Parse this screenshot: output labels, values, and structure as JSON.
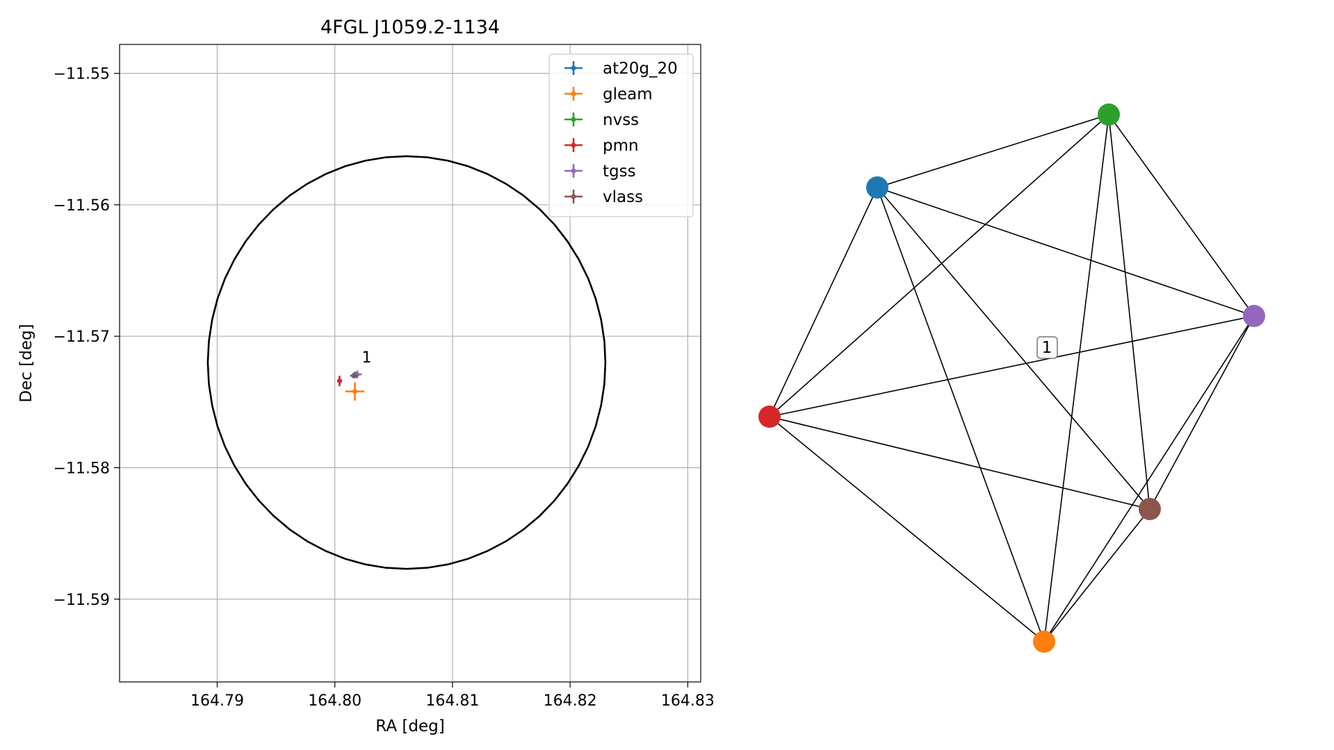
{
  "chart_data": [
    {
      "type": "scatter",
      "title": "4FGL J1059.2-1134",
      "xlabel": "RA [deg]",
      "ylabel": "Dec [deg]",
      "xlim": [
        164.7817,
        164.8311
      ],
      "ylim": [
        -11.5963,
        -11.5478
      ],
      "xticks": [
        164.79,
        164.8,
        164.81,
        164.82,
        164.83
      ],
      "xtick_labels": [
        "164.79",
        "164.80",
        "164.81",
        "164.82",
        "164.83"
      ],
      "yticks": [
        -11.55,
        -11.56,
        -11.57,
        -11.58,
        -11.59
      ],
      "ytick_labels": [
        "−11.55",
        "−11.56",
        "−11.57",
        "−11.58",
        "−11.59"
      ],
      "grid": true,
      "legend_position": "top-right",
      "series": [
        {
          "name": "at20g_20",
          "color": "#1f77b4",
          "ra": 164.8016,
          "dec": -11.573,
          "ra_err": 0.0003,
          "dec_err": 0.0002
        },
        {
          "name": "gleam",
          "color": "#ff7f0e",
          "ra": 164.8017,
          "dec": -11.5742,
          "ra_err": 0.0008,
          "dec_err": 0.0007
        },
        {
          "name": "nvss",
          "color": "#2ca02c",
          "ra": 164.8017,
          "dec": -11.5729,
          "ra_err": 0.0001,
          "dec_err": 0.0002
        },
        {
          "name": "pmn",
          "color": "#d62728",
          "ra": 164.8004,
          "dec": -11.5734,
          "ra_err": 0.0002,
          "dec_err": 0.0004
        },
        {
          "name": "tgss",
          "color": "#9467bd",
          "ra": 164.8019,
          "dec": -11.5729,
          "ra_err": 0.0004,
          "dec_err": 0.0003
        },
        {
          "name": "vlass",
          "color": "#8c564b",
          "ra": 164.8017,
          "dec": -11.573,
          "ra_err": 0.0001,
          "dec_err": 0.0001
        }
      ],
      "ellipse": {
        "center_ra": 164.8061,
        "center_dec": -11.572,
        "semi_ra": 0.0169,
        "semi_dec": 0.0157,
        "color": "#000000"
      },
      "annotations": [
        {
          "text": "1",
          "ra": 164.802,
          "dec": -11.5721
        }
      ]
    },
    {
      "type": "network",
      "nodes": [
        {
          "id": "at20g_20",
          "color": "#1f77b4"
        },
        {
          "id": "gleam",
          "color": "#ff7f0e"
        },
        {
          "id": "nvss",
          "color": "#2ca02c"
        },
        {
          "id": "pmn",
          "color": "#d62728"
        },
        {
          "id": "tgss",
          "color": "#9467bd"
        },
        {
          "id": "vlass",
          "color": "#8c564b"
        }
      ],
      "edges": [
        [
          "at20g_20",
          "gleam"
        ],
        [
          "at20g_20",
          "nvss"
        ],
        [
          "at20g_20",
          "pmn"
        ],
        [
          "at20g_20",
          "tgss"
        ],
        [
          "at20g_20",
          "vlass"
        ],
        [
          "gleam",
          "nvss"
        ],
        [
          "gleam",
          "pmn"
        ],
        [
          "gleam",
          "tgss"
        ],
        [
          "gleam",
          "vlass"
        ],
        [
          "nvss",
          "pmn"
        ],
        [
          "nvss",
          "tgss"
        ],
        [
          "nvss",
          "vlass"
        ],
        [
          "pmn",
          "tgss"
        ],
        [
          "pmn",
          "vlass"
        ],
        [
          "tgss",
          "vlass"
        ]
      ],
      "component_label": "1"
    }
  ]
}
